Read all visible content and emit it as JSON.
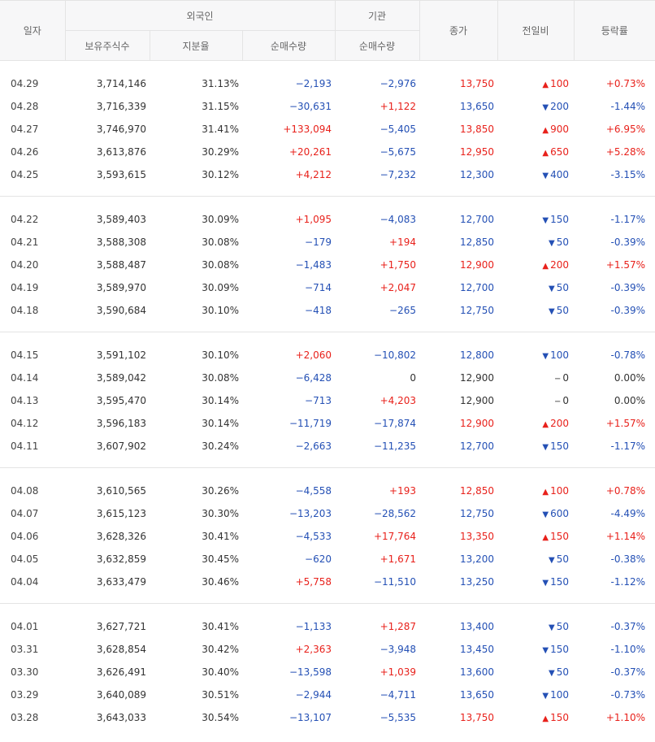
{
  "headers": {
    "date": "일자",
    "foreign": "외국인",
    "institution": "기관",
    "holdings": "보유주식수",
    "ratio": "지분율",
    "foreign_net": "순매수량",
    "inst_net": "순매수량",
    "close": "종가",
    "change": "전일비",
    "rate": "등락률"
  },
  "groups": [
    [
      {
        "date": "04.29",
        "holdings": "3,714,146",
        "ratio": "31.13%",
        "fnet": "−2,193",
        "inet": "−2,976",
        "close": "13,750",
        "dir": "up",
        "chg": "100",
        "rate": "+0.73%"
      },
      {
        "date": "04.28",
        "holdings": "3,716,339",
        "ratio": "31.15%",
        "fnet": "−30,631",
        "inet": "+1,122",
        "close": "13,650",
        "dir": "down",
        "chg": "200",
        "rate": "-1.44%"
      },
      {
        "date": "04.27",
        "holdings": "3,746,970",
        "ratio": "31.41%",
        "fnet": "+133,094",
        "inet": "−5,405",
        "close": "13,850",
        "dir": "up",
        "chg": "900",
        "rate": "+6.95%"
      },
      {
        "date": "04.26",
        "holdings": "3,613,876",
        "ratio": "30.29%",
        "fnet": "+20,261",
        "inet": "−5,675",
        "close": "12,950",
        "dir": "up",
        "chg": "650",
        "rate": "+5.28%"
      },
      {
        "date": "04.25",
        "holdings": "3,593,615",
        "ratio": "30.12%",
        "fnet": "+4,212",
        "inet": "−7,232",
        "close": "12,300",
        "dir": "down",
        "chg": "400",
        "rate": "-3.15%"
      }
    ],
    [
      {
        "date": "04.22",
        "holdings": "3,589,403",
        "ratio": "30.09%",
        "fnet": "+1,095",
        "inet": "−4,083",
        "close": "12,700",
        "dir": "down",
        "chg": "150",
        "rate": "-1.17%"
      },
      {
        "date": "04.21",
        "holdings": "3,588,308",
        "ratio": "30.08%",
        "fnet": "−179",
        "inet": "+194",
        "close": "12,850",
        "dir": "down",
        "chg": "50",
        "rate": "-0.39%"
      },
      {
        "date": "04.20",
        "holdings": "3,588,487",
        "ratio": "30.08%",
        "fnet": "−1,483",
        "inet": "+1,750",
        "close": "12,900",
        "dir": "up",
        "chg": "200",
        "rate": "+1.57%"
      },
      {
        "date": "04.19",
        "holdings": "3,589,970",
        "ratio": "30.09%",
        "fnet": "−714",
        "inet": "+2,047",
        "close": "12,700",
        "dir": "down",
        "chg": "50",
        "rate": "-0.39%"
      },
      {
        "date": "04.18",
        "holdings": "3,590,684",
        "ratio": "30.10%",
        "fnet": "−418",
        "inet": "−265",
        "close": "12,750",
        "dir": "down",
        "chg": "50",
        "rate": "-0.39%"
      }
    ],
    [
      {
        "date": "04.15",
        "holdings": "3,591,102",
        "ratio": "30.10%",
        "fnet": "+2,060",
        "inet": "−10,802",
        "close": "12,800",
        "dir": "down",
        "chg": "100",
        "rate": "-0.78%"
      },
      {
        "date": "04.14",
        "holdings": "3,589,042",
        "ratio": "30.08%",
        "fnet": "−6,428",
        "inet": "0",
        "close": "12,900",
        "dir": "flat",
        "chg": "0",
        "rate": "0.00%"
      },
      {
        "date": "04.13",
        "holdings": "3,595,470",
        "ratio": "30.14%",
        "fnet": "−713",
        "inet": "+4,203",
        "close": "12,900",
        "dir": "flat",
        "chg": "0",
        "rate": "0.00%"
      },
      {
        "date": "04.12",
        "holdings": "3,596,183",
        "ratio": "30.14%",
        "fnet": "−11,719",
        "inet": "−17,874",
        "close": "12,900",
        "dir": "up",
        "chg": "200",
        "rate": "+1.57%"
      },
      {
        "date": "04.11",
        "holdings": "3,607,902",
        "ratio": "30.24%",
        "fnet": "−2,663",
        "inet": "−11,235",
        "close": "12,700",
        "dir": "down",
        "chg": "150",
        "rate": "-1.17%"
      }
    ],
    [
      {
        "date": "04.08",
        "holdings": "3,610,565",
        "ratio": "30.26%",
        "fnet": "−4,558",
        "inet": "+193",
        "close": "12,850",
        "dir": "up",
        "chg": "100",
        "rate": "+0.78%"
      },
      {
        "date": "04.07",
        "holdings": "3,615,123",
        "ratio": "30.30%",
        "fnet": "−13,203",
        "inet": "−28,562",
        "close": "12,750",
        "dir": "down",
        "chg": "600",
        "rate": "-4.49%"
      },
      {
        "date": "04.06",
        "holdings": "3,628,326",
        "ratio": "30.41%",
        "fnet": "−4,533",
        "inet": "+17,764",
        "close": "13,350",
        "dir": "up",
        "chg": "150",
        "rate": "+1.14%"
      },
      {
        "date": "04.05",
        "holdings": "3,632,859",
        "ratio": "30.45%",
        "fnet": "−620",
        "inet": "+1,671",
        "close": "13,200",
        "dir": "down",
        "chg": "50",
        "rate": "-0.38%"
      },
      {
        "date": "04.04",
        "holdings": "3,633,479",
        "ratio": "30.46%",
        "fnet": "+5,758",
        "inet": "−11,510",
        "close": "13,250",
        "dir": "down",
        "chg": "150",
        "rate": "-1.12%"
      }
    ],
    [
      {
        "date": "04.01",
        "holdings": "3,627,721",
        "ratio": "30.41%",
        "fnet": "−1,133",
        "inet": "+1,287",
        "close": "13,400",
        "dir": "down",
        "chg": "50",
        "rate": "-0.37%"
      },
      {
        "date": "03.31",
        "holdings": "3,628,854",
        "ratio": "30.42%",
        "fnet": "+2,363",
        "inet": "−3,948",
        "close": "13,450",
        "dir": "down",
        "chg": "150",
        "rate": "-1.10%"
      },
      {
        "date": "03.30",
        "holdings": "3,626,491",
        "ratio": "30.40%",
        "fnet": "−13,598",
        "inet": "+1,039",
        "close": "13,600",
        "dir": "down",
        "chg": "50",
        "rate": "-0.37%"
      },
      {
        "date": "03.29",
        "holdings": "3,640,089",
        "ratio": "30.51%",
        "fnet": "−2,944",
        "inet": "−4,711",
        "close": "13,650",
        "dir": "down",
        "chg": "100",
        "rate": "-0.73%"
      },
      {
        "date": "03.28",
        "holdings": "3,643,033",
        "ratio": "30.54%",
        "fnet": "−13,107",
        "inet": "−5,535",
        "close": "13,750",
        "dir": "up",
        "chg": "150",
        "rate": "+1.10%"
      }
    ]
  ],
  "icons": {
    "up": "triangle-up-icon",
    "down": "triangle-down-icon",
    "flat": "dash-icon"
  },
  "colors": {
    "up": "#e8211b",
    "down": "#2450b5",
    "flat": "#333333"
  }
}
